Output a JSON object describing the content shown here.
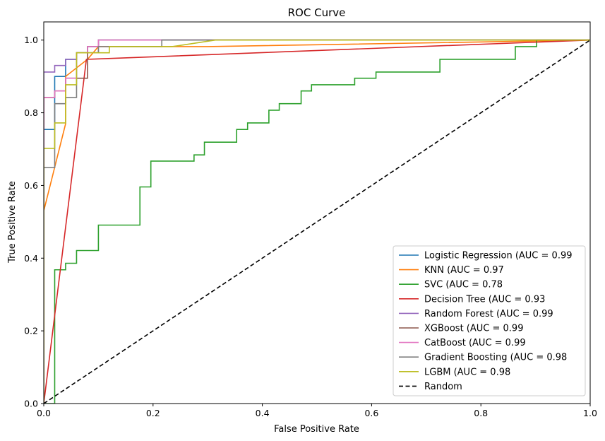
{
  "chart_data": {
    "type": "line",
    "title": "ROC Curve",
    "xlabel": "False Positive Rate",
    "ylabel": "True Positive Rate",
    "xlim": [
      0.0,
      1.0
    ],
    "ylim": [
      0.0,
      1.05
    ],
    "xticks": [
      "0.0",
      "0.2",
      "0.4",
      "0.6",
      "0.8",
      "1.0"
    ],
    "yticks": [
      "0.0",
      "0.2",
      "0.4",
      "0.6",
      "0.8",
      "1.0"
    ],
    "grid": false,
    "legend_position": "bottom-right",
    "series": [
      {
        "name": "Logistic Regression (AUC = 0.99",
        "color": "#1f77b4",
        "x": [
          0,
          0,
          0.02,
          0.02,
          0.04,
          0.04,
          0.06,
          0.06,
          0.08,
          0.08,
          0.1,
          0.1,
          1.0
        ],
        "y": [
          0,
          0.754,
          0.754,
          0.9,
          0.9,
          0.947,
          0.947,
          0.965,
          0.965,
          0.982,
          0.982,
          1.0,
          1.0
        ]
      },
      {
        "name": "KNN (AUC = 0.97",
        "color": "#ff7f0e",
        "x": [
          0,
          0,
          0.04,
          0.04,
          0.08,
          0.1,
          0.3,
          1.0
        ],
        "y": [
          0,
          0.53,
          0.77,
          0.9,
          0.947,
          0.982,
          0.982,
          1.0
        ]
      },
      {
        "name": "SVC (AUC = 0.78",
        "color": "#2ca02c",
        "x": [
          0,
          0.02,
          0.02,
          0.04,
          0.04,
          0.06,
          0.06,
          0.1,
          0.1,
          0.176,
          0.176,
          0.196,
          0.196,
          0.275,
          0.275,
          0.294,
          0.294,
          0.353,
          0.353,
          0.373,
          0.373,
          0.412,
          0.412,
          0.431,
          0.431,
          0.471,
          0.471,
          0.49,
          0.49,
          0.569,
          0.569,
          0.608,
          0.608,
          0.725,
          0.725,
          0.863,
          0.863,
          0.902,
          0.902,
          1.0
        ],
        "y": [
          0,
          0,
          0.368,
          0.368,
          0.386,
          0.386,
          0.421,
          0.421,
          0.491,
          0.491,
          0.596,
          0.596,
          0.667,
          0.667,
          0.684,
          0.684,
          0.719,
          0.719,
          0.754,
          0.754,
          0.772,
          0.772,
          0.807,
          0.807,
          0.825,
          0.825,
          0.86,
          0.86,
          0.877,
          0.877,
          0.895,
          0.895,
          0.912,
          0.912,
          0.947,
          0.947,
          0.982,
          0.982,
          1.0,
          1.0
        ]
      },
      {
        "name": "Decision Tree (AUC = 0.93",
        "color": "#d62728",
        "x": [
          0,
          0.078,
          1.0
        ],
        "y": [
          0,
          0.947,
          1.0
        ]
      },
      {
        "name": "Random Forest (AUC = 0.99",
        "color": "#9467bd",
        "x": [
          0,
          0,
          0.02,
          0.02,
          0.04,
          0.04,
          0.06,
          0.06,
          0.1,
          0.1,
          1.0
        ],
        "y": [
          0,
          0.912,
          0.912,
          0.93,
          0.93,
          0.947,
          0.947,
          0.965,
          0.965,
          1.0,
          1.0
        ]
      },
      {
        "name": "XGBoost (AUC = 0.99",
        "color": "#8c564b",
        "x": [
          0,
          0,
          0.02,
          0.02,
          0.04,
          0.04,
          0.08,
          0.08,
          0.1,
          0.1,
          1.0
        ],
        "y": [
          0,
          0.842,
          0.842,
          0.86,
          0.86,
          0.895,
          0.895,
          0.982,
          0.982,
          1.0,
          1.0
        ]
      },
      {
        "name": "CatBoost (AUC = 0.99",
        "color": "#e377c2",
        "x": [
          0,
          0,
          0.02,
          0.02,
          0.04,
          0.04,
          0.06,
          0.06,
          0.08,
          0.08,
          0.1,
          0.1,
          1.0
        ],
        "y": [
          0,
          0.842,
          0.842,
          0.86,
          0.86,
          0.895,
          0.895,
          0.965,
          0.965,
          0.982,
          0.982,
          1.0,
          1.0
        ]
      },
      {
        "name": "Gradient Boosting (AUC = 0.98",
        "color": "#7f7f7f",
        "x": [
          0,
          0,
          0.02,
          0.02,
          0.04,
          0.04,
          0.06,
          0.06,
          0.1,
          0.1,
          0.216,
          0.216,
          0.333,
          0.333,
          1.0
        ],
        "y": [
          0,
          0.649,
          0.649,
          0.825,
          0.825,
          0.842,
          0.842,
          0.965,
          0.965,
          0.982,
          0.982,
          1.0,
          1.0,
          1.0,
          1.0
        ]
      },
      {
        "name": "LGBM (AUC = 0.98",
        "color": "#bcbd22",
        "x": [
          0,
          0,
          0.02,
          0.02,
          0.04,
          0.04,
          0.06,
          0.06,
          0.08,
          0.08,
          0.12,
          0.12,
          0.235,
          0.314,
          1.0
        ],
        "y": [
          0,
          0.702,
          0.702,
          0.772,
          0.772,
          0.877,
          0.877,
          0.965,
          0.965,
          0.965,
          0.965,
          0.982,
          0.982,
          1.0,
          1.0
        ]
      },
      {
        "name": "Random",
        "color": "#000000",
        "dashed": true,
        "x": [
          0,
          1.0
        ],
        "y": [
          0,
          1.0
        ]
      }
    ]
  }
}
